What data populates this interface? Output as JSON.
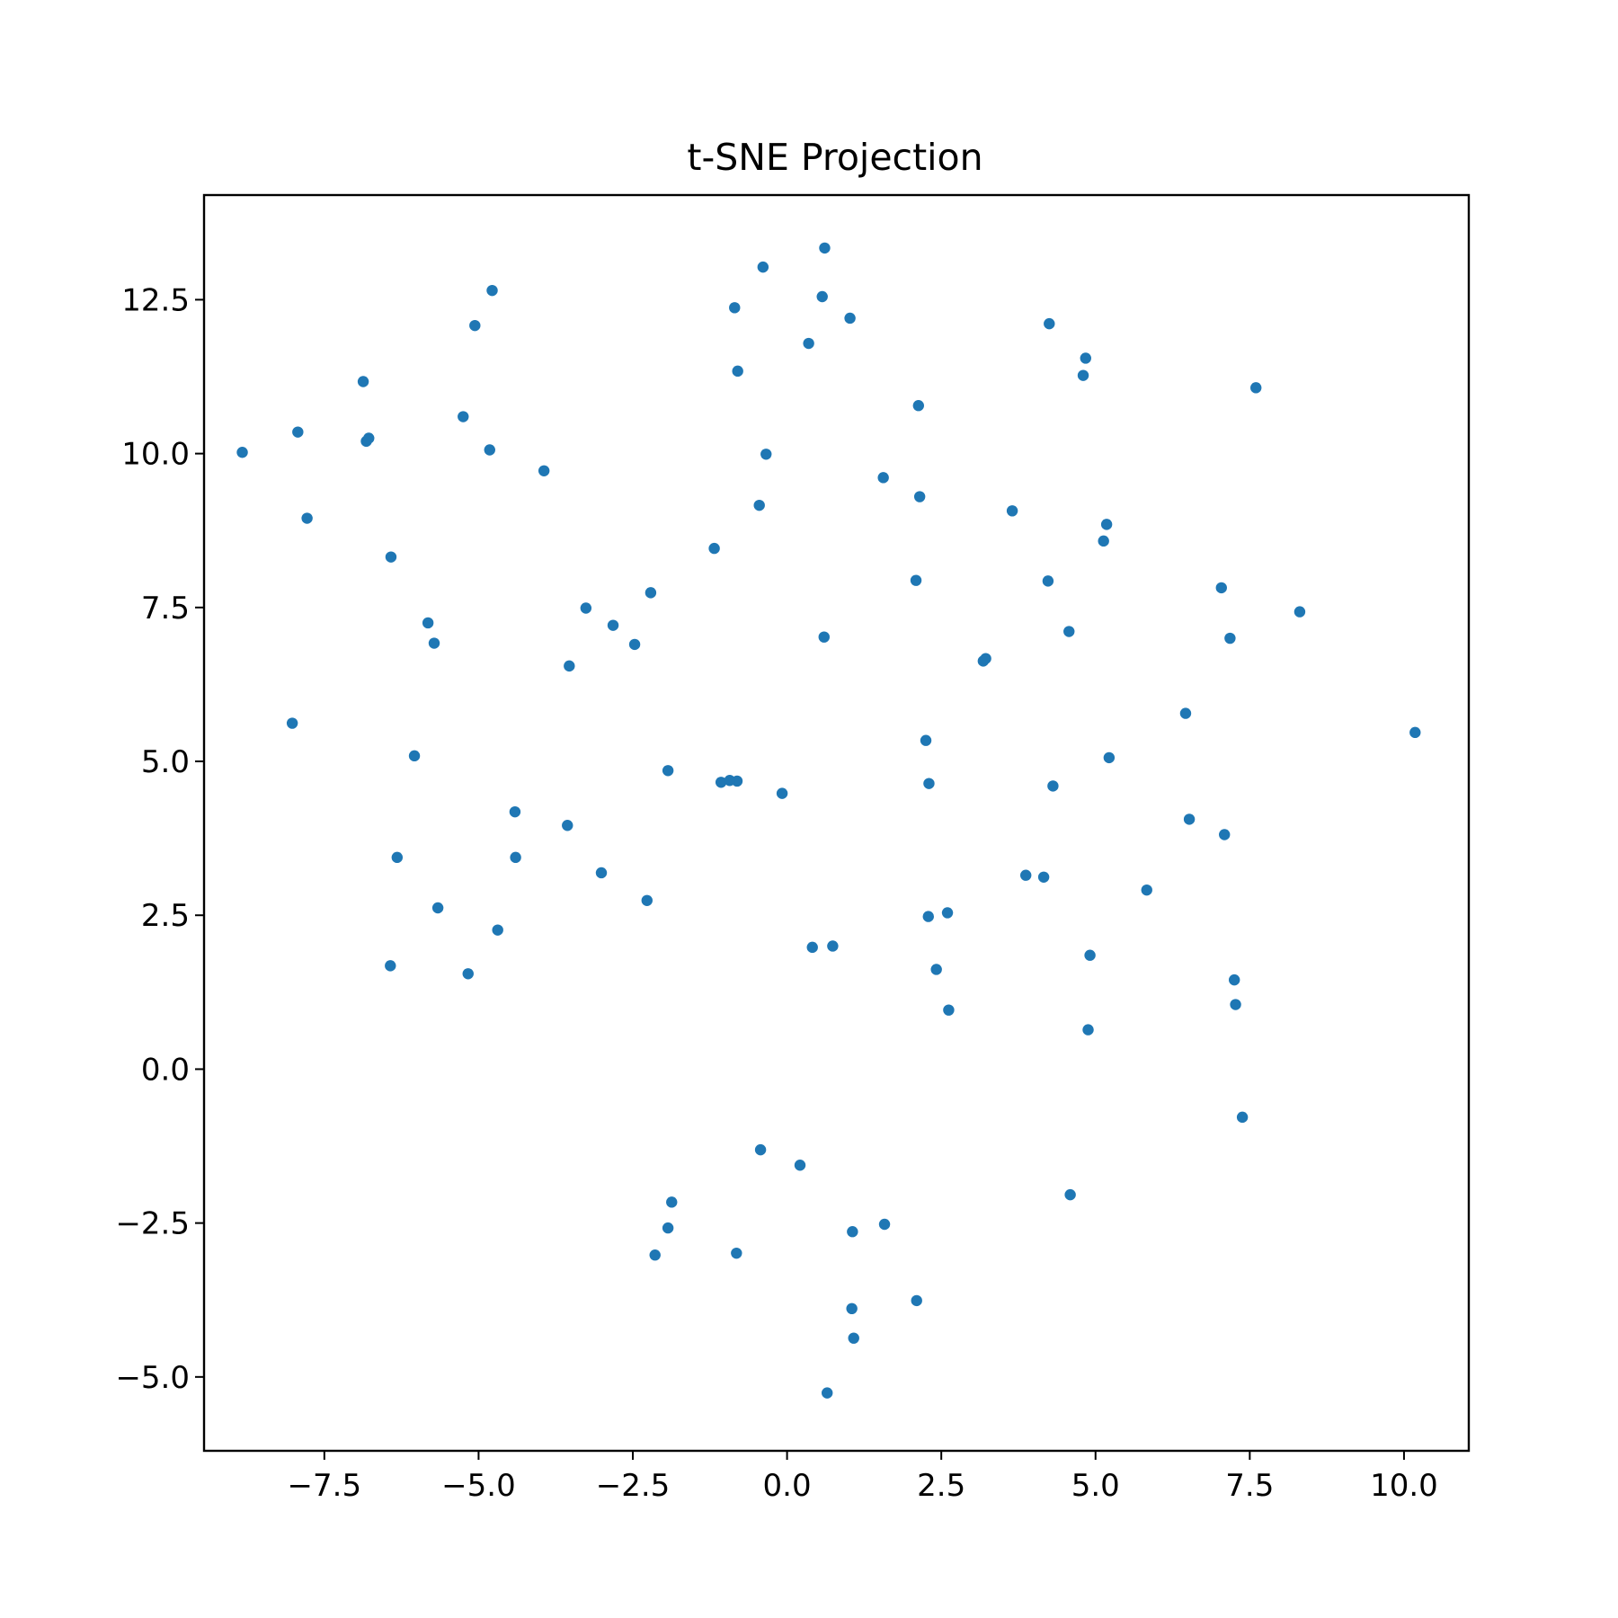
{
  "chart_data": {
    "type": "scatter",
    "title": "t-SNE Projection",
    "xlabel": "",
    "ylabel": "",
    "xlim": [
      -9.45,
      11.05
    ],
    "ylim": [
      -6.2,
      14.2
    ],
    "xticks": [
      -7.5,
      -5.0,
      -2.5,
      0.0,
      2.5,
      5.0,
      7.5,
      10.0
    ],
    "xtick_labels": [
      "−7.5",
      "−5.0",
      "−2.5",
      "0.0",
      "2.5",
      "5.0",
      "7.5",
      "10.0"
    ],
    "yticks": [
      -5.0,
      -2.5,
      0.0,
      2.5,
      5.0,
      7.5,
      10.0,
      12.5
    ],
    "ytick_labels": [
      "−5.0",
      "−2.5",
      "0.0",
      "2.5",
      "5.0",
      "7.5",
      "10.0",
      "12.5"
    ],
    "grid": false,
    "marker_color": "#1f77b4",
    "x": [
      -8.83,
      -7.93,
      -7.78,
      -6.87,
      -6.82,
      -6.78,
      -5.25,
      -5.06,
      -4.82,
      -4.78,
      -3.94,
      -8.02,
      -6.42,
      -5.82,
      -5.72,
      -3.26,
      -2.82,
      -2.47,
      -2.21,
      -3.53,
      -6.04,
      -4.41,
      -4.4,
      -3.56,
      -3.01,
      -6.32,
      -5.66,
      -4.69,
      -6.43,
      -5.17,
      -2.27,
      -1.93,
      -1.18,
      -0.85,
      -0.8,
      -0.39,
      -0.45,
      -0.81,
      -0.34,
      0.35,
      0.57,
      0.61,
      1.02,
      -1.07,
      -0.93,
      -0.08,
      0.6,
      1.56,
      2.13,
      2.15,
      2.09,
      3.65,
      3.18,
      3.22,
      4.25,
      4.23,
      4.8,
      4.84,
      4.57,
      5.18,
      5.13,
      7.6,
      7.04,
      7.18,
      8.31,
      2.25,
      2.3,
      4.31,
      5.22,
      6.46,
      6.52,
      7.09,
      10.18,
      3.87,
      4.16,
      5.83,
      2.29,
      2.6,
      2.42,
      2.62,
      4.91,
      4.88,
      7.25,
      7.27,
      0.41,
      0.74,
      7.38,
      4.59,
      -0.43,
      0.21,
      -1.87,
      -1.93,
      -2.14,
      -0.82,
      1.06,
      1.58,
      2.1,
      1.05,
      1.08,
      0.65
    ],
    "y": [
      10.02,
      10.35,
      8.95,
      11.17,
      10.2,
      10.25,
      10.6,
      12.08,
      10.06,
      12.65,
      9.72,
      5.62,
      8.32,
      7.25,
      6.92,
      7.49,
      7.21,
      6.9,
      7.74,
      6.55,
      5.09,
      4.18,
      3.44,
      3.96,
      3.19,
      3.44,
      2.62,
      2.26,
      1.68,
      1.55,
      2.74,
      4.85,
      8.46,
      12.37,
      11.34,
      13.03,
      9.16,
      4.68,
      9.99,
      11.79,
      12.55,
      13.34,
      12.2,
      4.66,
      4.69,
      4.48,
      7.02,
      9.61,
      10.78,
      9.3,
      7.94,
      9.07,
      6.63,
      6.67,
      12.11,
      7.93,
      11.27,
      11.55,
      7.11,
      8.85,
      8.58,
      11.07,
      7.82,
      7.0,
      7.43,
      5.34,
      4.64,
      4.6,
      5.06,
      5.78,
      4.06,
      3.81,
      5.47,
      3.15,
      3.12,
      2.91,
      2.48,
      2.54,
      1.62,
      0.96,
      1.85,
      0.64,
      1.45,
      1.05,
      1.98,
      2.0,
      -0.78,
      -2.04,
      -1.31,
      -1.56,
      -2.16,
      -2.58,
      -3.02,
      -2.99,
      -2.64,
      -2.52,
      -3.76,
      -3.89,
      -4.37,
      -5.26
    ]
  }
}
